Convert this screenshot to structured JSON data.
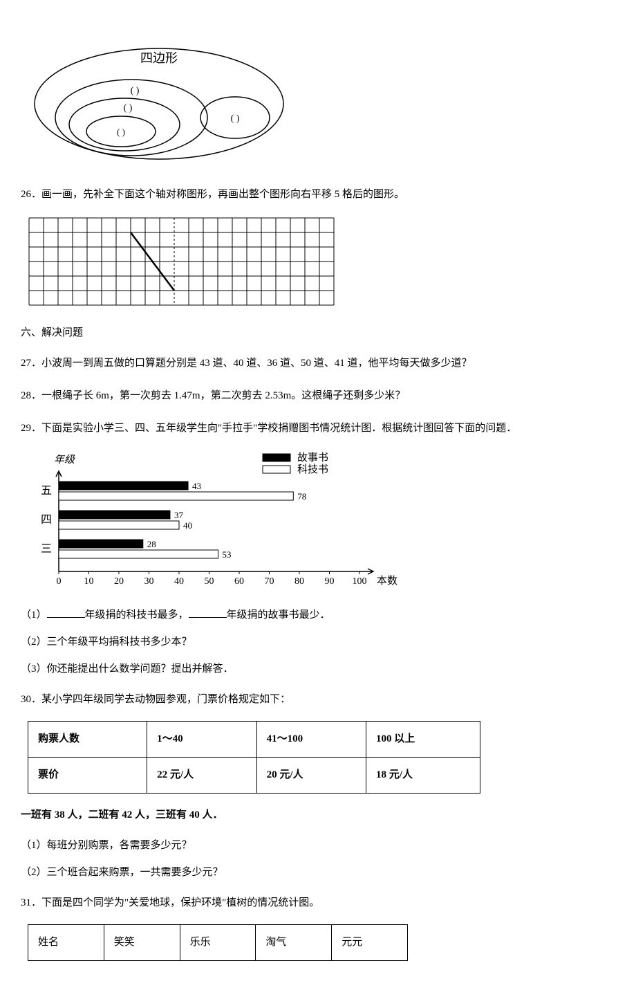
{
  "venn": {
    "title": "四边形",
    "slot1": "(           )",
    "slot2": "(           )",
    "slot3": "(        )",
    "slot4": "(           )"
  },
  "q26": {
    "text": "26．画一画，先补全下面这个轴对称图形，再画出整个图形向右平移 5 格后的图形。",
    "grid": {
      "cols": 21,
      "rows": 6,
      "cell_size": 21,
      "dashed_col": 10,
      "line_start": {
        "col": 7,
        "row": 1
      },
      "line_end": {
        "col": 10,
        "row": 5
      }
    }
  },
  "section6": "六、解决问题",
  "q27": "27．小波周一到周五做的口算题分别是 43 道、40 道、36 道、50 道、41 道，他平均每天做多少道？",
  "q28": "28．一根绳子长 6m，第一次剪去 1.47m，第二次剪去 2.53m。这根绳子还剩多少米？",
  "q29": {
    "text": "29．下面是实验小学三、四、五年级学生向\"手拉手\"学校捐赠图书情况统计图．根据统计图回答下面的问题．",
    "chart": {
      "y_axis_label": "年级",
      "x_axis_label": "本数",
      "legend": {
        "story": "故事书",
        "tech": "科技书"
      },
      "categories": [
        "五",
        "四",
        "三"
      ],
      "series_story": [
        43,
        37,
        28
      ],
      "series_tech": [
        78,
        40,
        53
      ],
      "x_ticks": [
        0,
        10,
        20,
        30,
        40,
        50,
        60,
        70,
        80,
        90,
        100
      ],
      "color_story": "#000000",
      "color_tech": "#ffffff",
      "bar_border": "#000000",
      "axis_color": "#000000",
      "font_family": "KaiTi"
    },
    "sub1_prefix": "（1）",
    "sub1_mid": "年级捐的科技书最多，",
    "sub1_suffix": "年级捐的故事书最少．",
    "sub2": "（2）三个年级平均捐科技书多少本？",
    "sub3": "（3）你还能提出什么数学问题？提出并解答．"
  },
  "q30": {
    "text": "30．某小学四年级同学去动物园参观，门票价格规定如下：",
    "table": {
      "headers": [
        "购票人数",
        "1～40",
        "41～100",
        "100 以上"
      ],
      "row": [
        "票价",
        "22 元/人",
        "20 元/人",
        "18 元/人"
      ]
    },
    "class_info": "一班有 38 人，二班有 42 人，三班有 40 人．",
    "sub1": "（1）每班分别购票，各需要多少元？",
    "sub2": "（2）三个班合起来购票，一共需要多少元？"
  },
  "q31": {
    "text": "31．下面是四个同学为\"关爱地球，保护环境\"植树的情况统计图。",
    "table": {
      "headers": [
        "姓名",
        "笑笑",
        "乐乐",
        "淘气",
        "元元"
      ]
    }
  }
}
